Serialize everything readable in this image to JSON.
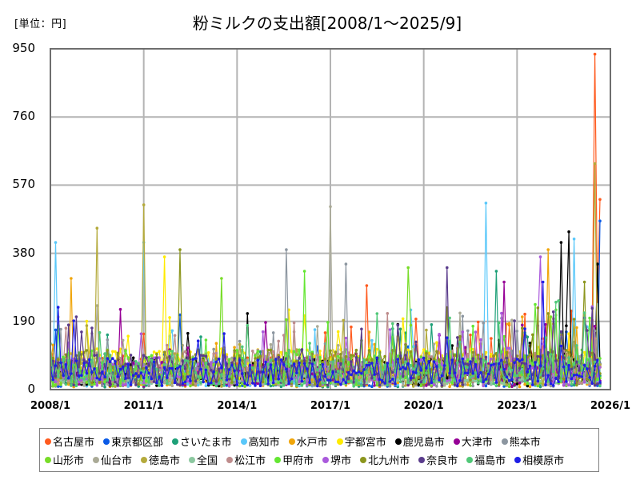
{
  "header": {
    "unit_label": "[単位：円]",
    "title": "粉ミルクの支出額[2008/1～2025/9]"
  },
  "chart_data": {
    "type": "line",
    "title": "粉ミルクの支出額[2008/1～2025/9]",
    "unit": "円",
    "xlabel": "",
    "ylabel": "",
    "ylim": [
      0,
      950
    ],
    "yticks": [
      0,
      190,
      380,
      570,
      760,
      950
    ],
    "xticks": [
      "2008/1",
      "2011/1",
      "2014/1",
      "2017/1",
      "2020/1",
      "2023/1",
      "2026/1"
    ],
    "x_range": [
      "2008/1",
      "2026/1"
    ],
    "grid": true,
    "legend_position": "bottom",
    "series": [
      {
        "name": "名古屋市",
        "color": "#ff5a1e",
        "peaks": [
          {
            "x": "2025/7",
            "y": 935
          },
          {
            "x": "2025/9",
            "y": 530
          },
          {
            "x": "2018/3",
            "y": 290
          }
        ]
      },
      {
        "name": "東京都区部",
        "color": "#0a5ae6",
        "peaks": [
          {
            "x": "2025/9",
            "y": 470
          }
        ]
      },
      {
        "name": "さいたま市",
        "color": "#1ea078",
        "peaks": [
          {
            "x": "2025/8",
            "y": 350
          },
          {
            "x": "2022/5",
            "y": 330
          }
        ]
      },
      {
        "name": "高知市",
        "color": "#5ac8fa",
        "peaks": [
          {
            "x": "2022/1",
            "y": 520
          },
          {
            "x": "2008/3",
            "y": 410
          },
          {
            "x": "2011/1",
            "y": 410
          },
          {
            "x": "2024/11",
            "y": 420
          }
        ]
      },
      {
        "name": "水戸市",
        "color": "#f0a50a",
        "peaks": [
          {
            "x": "2008/9",
            "y": 310
          },
          {
            "x": "2024/1",
            "y": 390
          }
        ]
      },
      {
        "name": "宇都宮市",
        "color": "#ffeb00",
        "peaks": [
          {
            "x": "2011/9",
            "y": 370
          }
        ]
      },
      {
        "name": "鹿児島市",
        "color": "#000000",
        "peaks": [
          {
            "x": "2024/9",
            "y": 440
          },
          {
            "x": "2024/6",
            "y": 410
          },
          {
            "x": "2025/8",
            "y": 350
          }
        ]
      },
      {
        "name": "大津市",
        "color": "#960096",
        "peaks": [
          {
            "x": "2022/8",
            "y": 300
          }
        ]
      },
      {
        "name": "熊本市",
        "color": "#8c96a0",
        "peaks": [
          {
            "x": "2015/8",
            "y": 390
          },
          {
            "x": "2017/7",
            "y": 350
          }
        ]
      },
      {
        "name": "山形市",
        "color": "#78dc28",
        "peaks": [
          {
            "x": "2013/7",
            "y": 310
          },
          {
            "x": "2019/7",
            "y": 340
          }
        ]
      },
      {
        "name": "仙台市",
        "color": "#aaaa96",
        "peaks": [
          {
            "x": "2017/1",
            "y": 510
          }
        ]
      },
      {
        "name": "徳島市",
        "color": "#b4aa3c",
        "peaks": [
          {
            "x": "2011/1",
            "y": 515
          },
          {
            "x": "2009/7",
            "y": 450
          },
          {
            "x": "2025/7",
            "y": 630
          }
        ]
      },
      {
        "name": "全国",
        "color": "#8cc8a0",
        "peaks": []
      },
      {
        "name": "松江市",
        "color": "#be8c8c",
        "peaks": []
      },
      {
        "name": "甲府市",
        "color": "#64e632",
        "peaks": [
          {
            "x": "2016/3",
            "y": 330
          }
        ]
      },
      {
        "name": "堺市",
        "color": "#aa5adc",
        "peaks": [
          {
            "x": "2023/10",
            "y": 370
          }
        ]
      },
      {
        "name": "北九州市",
        "color": "#8c961e",
        "peaks": [
          {
            "x": "2012/3",
            "y": 390
          }
        ]
      },
      {
        "name": "奈良市",
        "color": "#5a3c8c",
        "peaks": [
          {
            "x": "2020/10",
            "y": 340
          }
        ]
      },
      {
        "name": "福島市",
        "color": "#50c878",
        "peaks": []
      },
      {
        "name": "相模原市",
        "color": "#1e1ee6",
        "peaks": [
          {
            "x": "2023/11",
            "y": 300
          }
        ]
      }
    ]
  },
  "legend": {
    "rows": [
      [
        "名古屋市",
        "東京都区部",
        "さいたま市",
        "高知市",
        "水戸市",
        "宇都宮市",
        "鹿児島市",
        "大津市",
        "熊本市"
      ],
      [
        "山形市",
        "仙台市",
        "徳島市",
        "全国",
        "松江市",
        "甲府市",
        "堺市",
        "北九州市",
        "奈良市",
        "福島市",
        "相模原市"
      ]
    ]
  }
}
